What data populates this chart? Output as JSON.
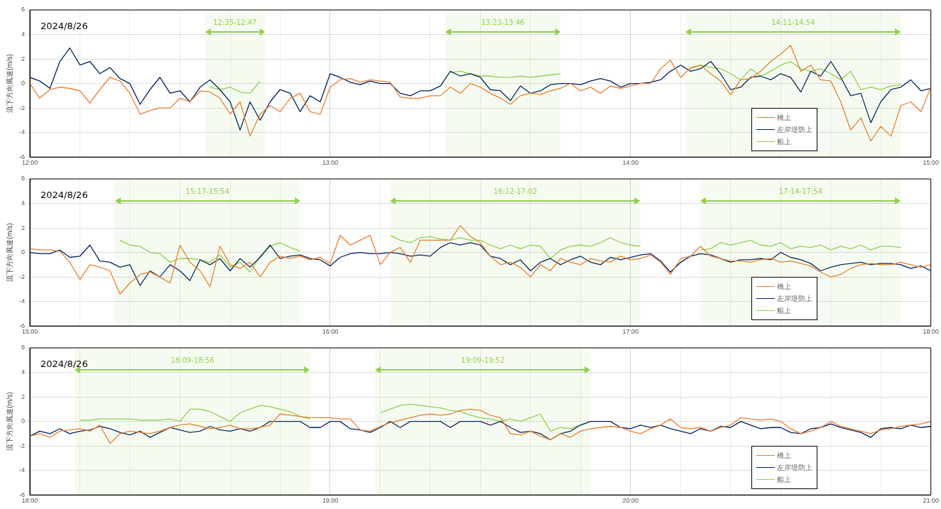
{
  "chart_data": [
    {
      "type": "line",
      "ylabel": "流下方向風速(m/s)",
      "annotations": [
        "2024/8/26"
      ],
      "x": [
        12,
        12.033,
        12.067,
        12.1,
        12.133,
        12.167,
        12.2,
        12.233,
        12.267,
        12.3,
        12.333,
        12.367,
        12.4,
        12.433,
        12.467,
        12.5,
        12.533,
        12.567,
        12.6,
        12.633,
        12.667,
        12.7,
        12.733,
        12.767,
        12.8,
        12.833,
        12.867,
        12.9,
        12.933,
        12.967,
        13,
        13.033,
        13.067,
        13.1,
        13.133,
        13.167,
        13.2,
        13.233,
        13.267,
        13.3,
        13.333,
        13.367,
        13.4,
        13.433,
        13.467,
        13.5,
        13.533,
        13.567,
        13.6,
        13.633,
        13.667,
        13.7,
        13.733,
        13.767,
        13.8,
        13.833,
        13.867,
        13.9,
        13.933,
        13.967,
        14,
        14.033,
        14.067,
        14.1,
        14.133,
        14.167,
        14.2,
        14.233,
        14.267,
        14.3,
        14.333,
        14.367,
        14.4,
        14.433,
        14.467,
        14.5,
        14.533,
        14.567,
        14.6,
        14.633,
        14.667,
        14.7,
        14.733,
        14.767,
        14.8,
        14.833,
        14.867,
        14.9,
        14.933,
        14.967,
        15
      ],
      "series": [
        {
          "name": "橋上",
          "color": "#ed7d31",
          "values": [
            0,
            -1.2,
            -0.5,
            -0.3,
            -0.4,
            -0.6,
            -1.6,
            -0.5,
            0.5,
            0.2,
            -0.8,
            -2.5,
            -2.2,
            -2.0,
            -2.0,
            -1.2,
            -1.5,
            -0.6,
            -0.7,
            -1.2,
            -2.5,
            -1.5,
            -4.3,
            -2.5,
            -1.8,
            -2.3,
            -1.2,
            -0.8,
            -2.3,
            -2.5,
            -0.3,
            0.3,
            0.4,
            0.1,
            0.3,
            0.2,
            0.1,
            -1.1,
            -1.2,
            -1.2,
            -1.0,
            -1.0,
            -0.3,
            -0.8,
            0,
            -0.3,
            -0.8,
            -1.2,
            -1.7,
            -1.0,
            -0.8,
            -0.9,
            -0.6,
            -0.4,
            0,
            -0.6,
            -0.3,
            -0.8,
            -0.2,
            -0.4,
            -0.2,
            0,
            0,
            1.2,
            1.9,
            0.5,
            1.3,
            1.5,
            0.8,
            0.2,
            -0.9,
            0.3,
            0.4,
            1.0,
            1.8,
            2.4,
            3.1,
            1.0,
            1.5,
            0.3,
            0.2,
            -1.5,
            -3.8,
            -2.8,
            -4.7,
            -3.5,
            -4.3,
            -1.8,
            -1.5,
            -2.3,
            -0.3
          ]
        },
        {
          "name": "左岸堤防上",
          "color": "#002060",
          "values": [
            0.5,
            0.2,
            -0.4,
            1.8,
            2.9,
            1.5,
            1.8,
            0.8,
            1.3,
            0.4,
            0,
            -1.7,
            -0.5,
            0.5,
            -0.8,
            -0.6,
            -1.5,
            -0.3,
            0.3,
            -0.5,
            -1.5,
            -3.8,
            -1.5,
            -3.0,
            -1.5,
            -0.5,
            -0.8,
            -2.3,
            -1.0,
            -1.5,
            0.8,
            0.5,
            0.1,
            -0.1,
            0.2,
            0,
            0,
            -0.8,
            -1.0,
            -0.6,
            -0.6,
            -0.2,
            1.0,
            0.6,
            0.8,
            0.5,
            -0.5,
            -0.6,
            -1.4,
            -0.2,
            -0.8,
            -0.6,
            -0.1,
            0,
            0,
            -0.1,
            0.2,
            0.4,
            0.2,
            -0.3,
            0,
            0,
            0.1,
            0.3,
            1.0,
            1.5,
            1.0,
            1.2,
            1.8,
            0.8,
            -0.5,
            -0.3,
            0.5,
            0.6,
            0.3,
            0.8,
            0.5,
            -0.7,
            1.0,
            0.6,
            1.8,
            0.5,
            -1.0,
            -0.8,
            -3.2,
            -1.5,
            -0.5,
            -0.3,
            0.3,
            -0.6,
            -0.4
          ]
        },
        {
          "name": "船上",
          "color": "#92d050",
          "values": [
            null,
            null,
            null,
            null,
            null,
            null,
            null,
            null,
            null,
            null,
            null,
            null,
            null,
            null,
            null,
            null,
            null,
            null,
            -0.3,
            -0.5,
            -0.3,
            -0.7,
            -0.8,
            0.2,
            null,
            null,
            null,
            null,
            null,
            null,
            null,
            null,
            null,
            null,
            null,
            null,
            null,
            null,
            null,
            null,
            null,
            null,
            0.9,
            1.0,
            0.8,
            0.6,
            0.6,
            0.5,
            0.5,
            0.6,
            0.5,
            0.6,
            0.7,
            0.8,
            null,
            null,
            null,
            null,
            null,
            null,
            null,
            null,
            null,
            null,
            null,
            null,
            1.2,
            1.5,
            1.3,
            1.2,
            0.8,
            0.3,
            1.2,
            0.6,
            1.0,
            1.5,
            1.8,
            1.2,
            1.0,
            1.2,
            0.8,
            0.3,
            1.0,
            -0.5,
            -0.3,
            -0.5,
            -0.2,
            -0.1,
            null,
            null,
            null
          ]
        }
      ],
      "xlim": [
        12,
        15
      ],
      "xticks": [
        {
          "value": 12,
          "label": "12:00"
        },
        {
          "value": 12.167,
          "label": null
        },
        {
          "value": 12.333,
          "label": null
        },
        {
          "value": 12.5,
          "label": null
        },
        {
          "value": 12.667,
          "label": null
        },
        {
          "value": 12.833,
          "label": null
        },
        {
          "value": 13,
          "label": "13:00"
        },
        {
          "value": 13.167,
          "label": null
        },
        {
          "value": 13.333,
          "label": null
        },
        {
          "value": 13.5,
          "label": null
        },
        {
          "value": 13.667,
          "label": null
        },
        {
          "value": 13.833,
          "label": null
        },
        {
          "value": 14,
          "label": "14:00"
        },
        {
          "value": 14.167,
          "label": null
        },
        {
          "value": 14.333,
          "label": null
        },
        {
          "value": 14.5,
          "label": null
        },
        {
          "value": 14.667,
          "label": null
        },
        {
          "value": 14.833,
          "label": null
        },
        {
          "value": 15,
          "label": "15:00"
        }
      ],
      "ylim": [
        -6,
        6
      ],
      "yticks": [
        -6,
        -4,
        -2,
        0,
        2,
        4,
        6
      ],
      "grid": true,
      "legend": "bottom right",
      "bands": [
        {
          "axis": "x",
          "from": 12.583,
          "to": 12.783,
          "label": "12:35-12:47",
          "color": "#92d050"
        },
        {
          "axis": "x",
          "from": 13.383,
          "to": 13.767,
          "label": "13:23-13:46",
          "color": "#92d050"
        },
        {
          "axis": "x",
          "from": 14.183,
          "to": 14.9,
          "label": "14:11-14:54",
          "color": "#92d050"
        }
      ]
    },
    {
      "type": "line",
      "ylabel": "流下方向風速(m/s)",
      "annotations": [
        "2024/8/26"
      ],
      "x": [
        15,
        15.033,
        15.067,
        15.1,
        15.133,
        15.167,
        15.2,
        15.233,
        15.267,
        15.3,
        15.333,
        15.367,
        15.4,
        15.433,
        15.467,
        15.5,
        15.533,
        15.567,
        15.6,
        15.633,
        15.667,
        15.7,
        15.733,
        15.767,
        15.8,
        15.833,
        15.867,
        15.9,
        15.933,
        15.967,
        16,
        16.033,
        16.067,
        16.1,
        16.133,
        16.167,
        16.2,
        16.233,
        16.267,
        16.3,
        16.333,
        16.367,
        16.4,
        16.433,
        16.467,
        16.5,
        16.533,
        16.567,
        16.6,
        16.633,
        16.667,
        16.7,
        16.733,
        16.767,
        16.8,
        16.833,
        16.867,
        16.9,
        16.933,
        16.967,
        17,
        17.033,
        17.067,
        17.1,
        17.133,
        17.167,
        17.2,
        17.233,
        17.267,
        17.3,
        17.333,
        17.367,
        17.4,
        17.433,
        17.467,
        17.5,
        17.533,
        17.567,
        17.6,
        17.633,
        17.667,
        17.7,
        17.733,
        17.767,
        17.8,
        17.833,
        17.867,
        17.9,
        17.933,
        17.967,
        18
      ],
      "series": [
        {
          "name": "橋上",
          "color": "#ed7d31",
          "values": [
            0.3,
            0.2,
            0.2,
            0.1,
            -0.8,
            -2.2,
            -1.0,
            -1.2,
            -1.5,
            -3.4,
            -2.5,
            -1.8,
            -1.6,
            -2.0,
            -2.5,
            0.6,
            -0.8,
            -1.5,
            -2.8,
            0.5,
            -1.0,
            -1.3,
            -0.8,
            -2.0,
            -0.8,
            -0.3,
            -0.5,
            -0.3,
            -0.6,
            -0.4,
            -0.9,
            1.4,
            0.6,
            1.0,
            1.4,
            -1.0,
            0,
            0.4,
            -0.8,
            1.0,
            1.0,
            1.0,
            1.0,
            2.2,
            1.3,
            0.8,
            -0.3,
            -1.0,
            -0.8,
            -1.2,
            -2.0,
            -1.0,
            -1.5,
            -0.5,
            -0.8,
            -1.0,
            -0.5,
            -0.7,
            -0.8,
            -0.3,
            -0.6,
            -0.5,
            -0.2,
            -0.8,
            -1.8,
            -0.5,
            -0.3,
            0.5,
            -0.3,
            -0.5,
            -0.7,
            -0.7,
            -0.8,
            -0.6,
            -0.5,
            -0.8,
            -0.7,
            -0.9,
            -1.1,
            -1.6,
            -2.0,
            -1.8,
            -1.3,
            -1.0,
            -0.9,
            -1.0,
            -1.0,
            -0.8,
            -1.0,
            -1.2,
            -1.0
          ]
        },
        {
          "name": "左岸堤防上",
          "color": "#002060",
          "values": [
            0,
            -0.1,
            -0.1,
            0.2,
            -0.4,
            -0.3,
            0.6,
            -0.7,
            -0.8,
            -1.2,
            -1.0,
            -2.7,
            -1.5,
            -2.0,
            -1.0,
            -1.5,
            -2.3,
            -0.6,
            -1.0,
            -0.5,
            -1.5,
            -0.5,
            -1.2,
            -0.4,
            0.6,
            -0.5,
            -0.3,
            -0.2,
            -0.5,
            -0.6,
            -1.1,
            -0.4,
            -0.1,
            0,
            -0.1,
            -0.1,
            0,
            -0.1,
            -0.3,
            -0.2,
            -0.3,
            0.4,
            0.8,
            0.6,
            0.8,
            0.6,
            -0.3,
            -0.5,
            -1.0,
            -0.6,
            -1.5,
            -0.8,
            -0.5,
            -1.0,
            -0.6,
            -0.3,
            -0.8,
            -1.0,
            -0.4,
            -0.6,
            -0.4,
            -0.2,
            -0.1,
            -0.7,
            -1.6,
            -0.8,
            -0.3,
            -0.1,
            -0.2,
            -0.5,
            -0.8,
            -0.6,
            -0.6,
            -0.5,
            -0.6,
            0,
            -0.4,
            -0.6,
            -0.9,
            -1.5,
            -1.2,
            -1.0,
            -0.9,
            -0.8,
            -1.0,
            -0.9,
            -0.9,
            -1.0,
            -1.3,
            -1.1,
            -1.5
          ]
        },
        {
          "name": "船上",
          "color": "#92d050",
          "values": [
            null,
            null,
            null,
            null,
            null,
            null,
            null,
            null,
            null,
            1.0,
            0.6,
            0.5,
            0,
            -0.1,
            -0.8,
            -0.5,
            -0.5,
            -0.6,
            -0.8,
            -0.2,
            -1.2,
            -0.8,
            -1.6,
            -0.3,
            0.5,
            0.8,
            0.4,
            0.1,
            null,
            null,
            null,
            null,
            null,
            null,
            null,
            null,
            1.4,
            1.0,
            0.8,
            1.2,
            1.3,
            1.1,
            1.0,
            1.2,
            1.0,
            1.0,
            0.6,
            0.3,
            0.6,
            0.3,
            0.6,
            0.5,
            -0.5,
            0.2,
            0.5,
            0.6,
            0.5,
            0.8,
            1.2,
            0.8,
            0.6,
            0.5,
            null,
            null,
            null,
            null,
            null,
            0.2,
            0.3,
            0.8,
            0.6,
            0.8,
            1.0,
            0.6,
            0.5,
            0.8,
            0.3,
            0.5,
            0.4,
            0.6,
            0.2,
            0.5,
            0.3,
            0.6,
            0.2,
            0.5,
            0.5,
            0.4,
            null,
            null,
            null
          ]
        }
      ],
      "xlim": [
        15,
        18
      ],
      "xticks": [
        {
          "value": 15,
          "label": "15:00"
        },
        {
          "value": 15.167,
          "label": null
        },
        {
          "value": 15.333,
          "label": null
        },
        {
          "value": 15.5,
          "label": null
        },
        {
          "value": 15.667,
          "label": null
        },
        {
          "value": 15.833,
          "label": null
        },
        {
          "value": 16,
          "label": "16:00"
        },
        {
          "value": 16.167,
          "label": null
        },
        {
          "value": 16.333,
          "label": null
        },
        {
          "value": 16.5,
          "label": null
        },
        {
          "value": 16.667,
          "label": null
        },
        {
          "value": 16.833,
          "label": null
        },
        {
          "value": 17,
          "label": "17:00"
        },
        {
          "value": 17.167,
          "label": null
        },
        {
          "value": 17.333,
          "label": null
        },
        {
          "value": 17.5,
          "label": null
        },
        {
          "value": 17.667,
          "label": null
        },
        {
          "value": 17.833,
          "label": null
        },
        {
          "value": 18,
          "label": "18:00"
        }
      ],
      "ylim": [
        -6,
        6
      ],
      "yticks": [
        -6,
        -4,
        -2,
        0,
        2,
        4,
        6
      ],
      "grid": true,
      "legend": "bottom right",
      "bands": [
        {
          "axis": "x",
          "from": 15.283,
          "to": 15.9,
          "label": "15:17-15:54",
          "color": "#92d050"
        },
        {
          "axis": "x",
          "from": 16.2,
          "to": 17.033,
          "label": "16:12-17:02",
          "color": "#92d050"
        },
        {
          "axis": "x",
          "from": 17.233,
          "to": 17.9,
          "label": "17:14-17:54",
          "color": "#92d050"
        }
      ]
    },
    {
      "type": "line",
      "ylabel": "流下方向風速(m/s)",
      "annotations": [
        "2024/8/26"
      ],
      "x": [
        18,
        18.033,
        18.067,
        18.1,
        18.133,
        18.167,
        18.2,
        18.233,
        18.267,
        18.3,
        18.333,
        18.367,
        18.4,
        18.433,
        18.467,
        18.5,
        18.533,
        18.567,
        18.6,
        18.633,
        18.667,
        18.7,
        18.733,
        18.767,
        18.8,
        18.833,
        18.867,
        18.9,
        18.933,
        18.967,
        19,
        19.033,
        19.067,
        19.1,
        19.133,
        19.167,
        19.2,
        19.233,
        19.267,
        19.3,
        19.333,
        19.367,
        19.4,
        19.433,
        19.467,
        19.5,
        19.533,
        19.567,
        19.6,
        19.633,
        19.667,
        19.7,
        19.733,
        19.767,
        19.8,
        19.833,
        19.867,
        19.9,
        19.933,
        19.967,
        20,
        20.033,
        20.067,
        20.1,
        20.133,
        20.167,
        20.2,
        20.233,
        20.267,
        20.3,
        20.333,
        20.367,
        20.4,
        20.433,
        20.467,
        20.5,
        20.533,
        20.567,
        20.6,
        20.633,
        20.667,
        20.7,
        20.733,
        20.767,
        20.8,
        20.833,
        20.867,
        20.9,
        20.933,
        20.967,
        21
      ],
      "series": [
        {
          "name": "橋上",
          "color": "#ed7d31",
          "values": [
            -1.2,
            -1.0,
            -1.3,
            -0.8,
            -0.7,
            -0.6,
            -0.8,
            -0.3,
            -1.8,
            -1.0,
            -0.8,
            -0.9,
            -1.0,
            -0.8,
            -0.5,
            -0.3,
            -0.2,
            -0.4,
            -0.6,
            -0.5,
            -0.3,
            -0.6,
            -0.6,
            -0.5,
            -0.3,
            0.6,
            0.5,
            0.4,
            0.3,
            0.3,
            0.3,
            0.2,
            0.2,
            -0.7,
            -0.8,
            -0.4,
            -0.1,
            0.1,
            0.3,
            0.5,
            0.6,
            0.5,
            0.6,
            0.9,
            1.0,
            0.9,
            0.5,
            0.3,
            -1.0,
            -1.1,
            -0.8,
            -1.2,
            -1.5,
            -1.0,
            -1.3,
            -0.8,
            -0.6,
            -0.5,
            -0.4,
            -0.5,
            -0.8,
            -1.0,
            -0.6,
            -0.3,
            0.2,
            -0.5,
            -0.6,
            -0.5,
            -0.8,
            -0.5,
            -0.3,
            0.3,
            0.2,
            0.1,
            0.2,
            0,
            -0.6,
            -1.0,
            -0.8,
            -0.5,
            0,
            -0.4,
            -0.6,
            -0.8,
            -1.0,
            -0.7,
            -0.6,
            -0.4,
            -0.3,
            -0.2,
            0
          ]
        },
        {
          "name": "左岸堤防上",
          "color": "#002060",
          "values": [
            -1.2,
            -0.8,
            -1.0,
            -0.6,
            -1.0,
            -0.8,
            -0.7,
            -0.4,
            -0.6,
            -0.9,
            -1.1,
            -0.8,
            -1.3,
            -0.9,
            -0.5,
            -0.7,
            -0.9,
            -0.8,
            -0.4,
            -0.7,
            -0.8,
            -0.6,
            -0.8,
            -0.5,
            0,
            0,
            0,
            0,
            -0.5,
            -0.5,
            0,
            0,
            -0.6,
            -0.7,
            -0.9,
            -0.5,
            0,
            -0.5,
            0,
            0,
            0,
            0,
            -0.5,
            0,
            0,
            0,
            -0.3,
            0,
            -0.5,
            -0.9,
            -0.8,
            -1.0,
            -1.5,
            -1.0,
            -0.8,
            -0.3,
            0,
            0,
            0,
            -0.5,
            -0.6,
            -0.3,
            -0.5,
            -0.3,
            -0.6,
            -0.8,
            -1.0,
            -0.6,
            -0.8,
            -0.4,
            -0.5,
            0,
            -0.3,
            -0.6,
            -0.5,
            -0.5,
            -0.9,
            -1.0,
            -0.6,
            -0.5,
            -0.2,
            -0.5,
            -0.7,
            -0.9,
            -1.3,
            -0.6,
            -0.5,
            -0.6,
            -0.3,
            -0.5,
            -0.4
          ]
        },
        {
          "name": "船上",
          "color": "#92d050",
          "values": [
            null,
            null,
            null,
            null,
            null,
            0.1,
            0.1,
            0.2,
            0.2,
            0.2,
            0.2,
            0.1,
            0.1,
            0.1,
            0.2,
            0,
            1.0,
            1.0,
            0.8,
            0.4,
            0,
            0.7,
            1.0,
            1.3,
            1.2,
            1.0,
            0.8,
            0.4,
            0.2,
            null,
            null,
            null,
            null,
            null,
            null,
            0.7,
            1.0,
            1.3,
            1.4,
            1.3,
            1.2,
            1.1,
            0.9,
            0.8,
            0.5,
            0.3,
            0.2,
            0,
            0.2,
            0,
            0.3,
            0.6,
            -0.8,
            -0.5,
            -0.6,
            -0.3,
            0,
            null,
            null,
            null,
            null,
            null,
            null,
            null,
            null,
            null,
            null,
            null,
            null,
            null,
            null,
            null,
            null,
            null,
            null,
            null,
            null,
            null,
            null,
            null,
            null,
            null,
            null,
            null,
            null,
            null,
            null,
            null,
            null,
            null,
            null
          ]
        }
      ],
      "xlim": [
        18,
        21
      ],
      "xticks": [
        {
          "value": 18,
          "label": "18:00"
        },
        {
          "value": 18.167,
          "label": null
        },
        {
          "value": 18.333,
          "label": null
        },
        {
          "value": 18.5,
          "label": null
        },
        {
          "value": 18.667,
          "label": null
        },
        {
          "value": 18.833,
          "label": null
        },
        {
          "value": 19,
          "label": "19:00"
        },
        {
          "value": 19.167,
          "label": null
        },
        {
          "value": 19.333,
          "label": null
        },
        {
          "value": 19.5,
          "label": null
        },
        {
          "value": 19.667,
          "label": null
        },
        {
          "value": 19.833,
          "label": null
        },
        {
          "value": 20,
          "label": "20:00"
        },
        {
          "value": 20.167,
          "label": null
        },
        {
          "value": 20.333,
          "label": null
        },
        {
          "value": 20.5,
          "label": null
        },
        {
          "value": 20.667,
          "label": null
        },
        {
          "value": 20.833,
          "label": null
        },
        {
          "value": 21,
          "label": "21:00"
        }
      ],
      "ylim": [
        -6,
        6
      ],
      "yticks": [
        -6,
        -4,
        -2,
        0,
        2,
        4,
        6
      ],
      "grid": true,
      "legend": "bottom right",
      "bands": [
        {
          "axis": "x",
          "from": 18.15,
          "to": 18.933,
          "label": "18:09-18:56",
          "color": "#92d050"
        },
        {
          "axis": "x",
          "from": 19.15,
          "to": 19.867,
          "label": "19:09-19:52",
          "color": "#92d050"
        }
      ]
    }
  ]
}
